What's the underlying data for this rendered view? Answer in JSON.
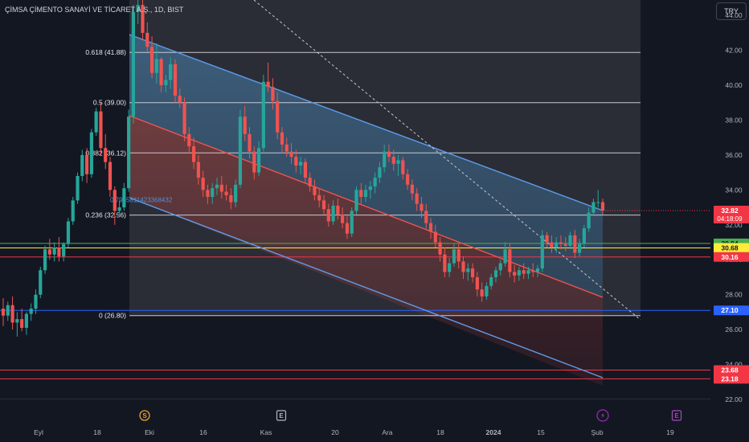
{
  "header": {
    "title": "ÇİMSA ÇİMENTO SANAYİ VE TİCARET A.Ş., 1D, BIST",
    "currency_button": "TRY"
  },
  "chart_data": {
    "type": "candlestick",
    "ylim": [
      22,
      44.5
    ],
    "y_ticks": [
      "22.00",
      "24.00",
      "26.00",
      "28.00",
      "30.00",
      "32.00",
      "34.00",
      "36.00",
      "38.00",
      "40.00",
      "42.00",
      "44.00"
    ],
    "x_ticks": [
      "Eyl",
      "18",
      "Eki",
      "16",
      "Kas",
      "20",
      "Ara",
      "18",
      "2024",
      "15",
      "Şub",
      "19"
    ],
    "fib_levels": [
      {
        "label": "0.618 (41.88)",
        "value": 41.88
      },
      {
        "label": "0.5 (39.00)",
        "value": 39.0
      },
      {
        "label": "0.382 (36.12)",
        "value": 36.12
      },
      {
        "label": "0.236 (32.56)",
        "value": 32.56
      },
      {
        "label": "0 (26.80)",
        "value": 26.8
      }
    ],
    "price_lines": [
      {
        "value": 30.94,
        "label": "30.94",
        "color": "#4caf50"
      },
      {
        "value": 30.68,
        "label": "30.68",
        "color": "#ffeb3b"
      },
      {
        "value": 30.16,
        "label": "30.16",
        "color": "#f23645"
      },
      {
        "value": 27.1,
        "label": "27.10",
        "color": "#2962ff"
      },
      {
        "value": 23.68,
        "label": "23.68",
        "color": "#f23645"
      },
      {
        "value": 23.18,
        "label": "23.18",
        "color": "#f23645"
      }
    ],
    "last_price": {
      "value": "32.82",
      "countdown": "04:18:09",
      "color": "#f23645"
    },
    "annotation": "0.7945811423368432",
    "event_markers": [
      {
        "symbol": "S",
        "type": "split",
        "position": "Eki"
      },
      {
        "symbol": "E",
        "type": "earnings",
        "position": "Kas"
      },
      {
        "symbol": "⚡",
        "type": "news",
        "position": "Şub"
      },
      {
        "symbol": "E",
        "type": "earnings",
        "position": "Şub"
      }
    ],
    "colors": {
      "up": "#26a69a",
      "down": "#ef5350",
      "channel": "#5d9cec",
      "background": "#131722"
    },
    "candles": [
      [
        27.2,
        27.8,
        26.2,
        26.8
      ],
      [
        26.8,
        27.6,
        26.5,
        27.4
      ],
      [
        27.4,
        27.9,
        26.0,
        26.4
      ],
      [
        26.4,
        27.0,
        25.6,
        26.6
      ],
      [
        26.6,
        27.2,
        25.9,
        26.1
      ],
      [
        26.1,
        27.0,
        25.7,
        26.9
      ],
      [
        26.9,
        27.5,
        26.5,
        27.2
      ],
      [
        27.2,
        28.3,
        26.9,
        28.0
      ],
      [
        28.0,
        29.6,
        27.8,
        29.4
      ],
      [
        29.4,
        30.8,
        29.2,
        30.6
      ],
      [
        30.6,
        31.2,
        30.0,
        30.3
      ],
      [
        30.3,
        31.0,
        29.9,
        30.7
      ],
      [
        30.7,
        31.3,
        29.9,
        30.2
      ],
      [
        30.2,
        31.0,
        29.9,
        30.9
      ],
      [
        30.9,
        32.4,
        30.7,
        32.2
      ],
      [
        32.2,
        33.6,
        32.0,
        33.4
      ],
      [
        33.4,
        35.0,
        33.2,
        34.8
      ],
      [
        34.8,
        36.3,
        34.5,
        36.0
      ],
      [
        36.0,
        36.4,
        34.4,
        34.9
      ],
      [
        34.9,
        37.5,
        34.7,
        37.3
      ],
      [
        37.3,
        38.7,
        37.1,
        38.5
      ],
      [
        38.5,
        39.0,
        36.0,
        36.4
      ],
      [
        36.4,
        37.2,
        35.2,
        35.6
      ],
      [
        35.6,
        35.9,
        33.6,
        34.0
      ],
      [
        34.0,
        34.2,
        32.0,
        32.8
      ],
      [
        32.8,
        33.4,
        32.5,
        33.0
      ],
      [
        33.0,
        34.4,
        32.8,
        34.1
      ],
      [
        34.1,
        38.6,
        33.9,
        38.2
      ],
      [
        38.2,
        44.6,
        37.8,
        44.2
      ],
      [
        44.2,
        45.0,
        43.5,
        44.6
      ],
      [
        44.6,
        45.0,
        42.6,
        43.0
      ],
      [
        43.0,
        43.6,
        41.9,
        42.2
      ],
      [
        42.2,
        42.8,
        40.4,
        40.7
      ],
      [
        40.7,
        42.4,
        40.1,
        41.5
      ],
      [
        41.5,
        41.6,
        39.6,
        40.0
      ],
      [
        40.0,
        40.6,
        39.6,
        40.3
      ],
      [
        40.3,
        41.6,
        39.8,
        41.2
      ],
      [
        41.2,
        41.5,
        39.0,
        39.4
      ],
      [
        39.4,
        39.8,
        38.7,
        39.0
      ],
      [
        39.0,
        39.3,
        36.8,
        37.2
      ],
      [
        37.2,
        37.6,
        36.1,
        36.5
      ],
      [
        36.5,
        37.0,
        35.2,
        35.6
      ],
      [
        35.6,
        36.0,
        34.3,
        34.7
      ],
      [
        34.7,
        35.1,
        33.6,
        34.0
      ],
      [
        34.0,
        34.3,
        33.2,
        33.6
      ],
      [
        33.6,
        34.4,
        33.2,
        34.1
      ],
      [
        34.1,
        34.7,
        33.7,
        34.3
      ],
      [
        34.3,
        34.8,
        33.5,
        33.9
      ],
      [
        33.9,
        34.3,
        33.4,
        33.7
      ],
      [
        33.7,
        34.1,
        32.9,
        33.3
      ],
      [
        33.3,
        34.6,
        33.0,
        34.3
      ],
      [
        34.3,
        38.6,
        34.1,
        38.2
      ],
      [
        38.2,
        38.8,
        36.8,
        37.2
      ],
      [
        37.2,
        37.6,
        35.8,
        36.2
      ],
      [
        36.2,
        36.5,
        34.6,
        35.0
      ],
      [
        35.0,
        36.8,
        34.8,
        36.4
      ],
      [
        36.4,
        40.6,
        36.2,
        40.2
      ],
      [
        40.2,
        41.3,
        39.6,
        39.9
      ],
      [
        39.9,
        40.4,
        38.6,
        39.1
      ],
      [
        39.1,
        39.6,
        36.9,
        37.3
      ],
      [
        37.3,
        37.6,
        36.1,
        36.6
      ],
      [
        36.6,
        37.0,
        35.9,
        36.2
      ],
      [
        36.2,
        36.7,
        35.5,
        35.9
      ],
      [
        35.9,
        36.3,
        35.0,
        35.4
      ],
      [
        35.4,
        35.9,
        34.9,
        35.6
      ],
      [
        35.6,
        35.8,
        34.4,
        34.7
      ],
      [
        34.7,
        35.0,
        33.9,
        34.2
      ],
      [
        34.2,
        34.6,
        33.4,
        33.7
      ],
      [
        33.7,
        34.1,
        33.0,
        33.4
      ],
      [
        33.4,
        33.7,
        32.6,
        32.9
      ],
      [
        32.9,
        33.2,
        31.9,
        32.2
      ],
      [
        32.2,
        33.4,
        32.0,
        33.1
      ],
      [
        33.1,
        33.5,
        32.3,
        32.6
      ],
      [
        32.6,
        33.0,
        31.8,
        32.1
      ],
      [
        32.1,
        32.5,
        31.2,
        31.5
      ],
      [
        31.5,
        33.0,
        31.3,
        32.8
      ],
      [
        32.8,
        34.2,
        32.6,
        34.0
      ],
      [
        34.0,
        34.4,
        33.2,
        33.6
      ],
      [
        33.6,
        34.3,
        33.3,
        34.0
      ],
      [
        34.0,
        34.5,
        33.5,
        34.2
      ],
      [
        34.2,
        35.0,
        33.8,
        34.7
      ],
      [
        34.7,
        35.6,
        34.4,
        35.3
      ],
      [
        35.3,
        36.6,
        35.0,
        36.2
      ],
      [
        36.2,
        36.6,
        35.6,
        35.9
      ],
      [
        35.9,
        36.3,
        35.1,
        35.5
      ],
      [
        35.5,
        36.0,
        34.8,
        35.7
      ],
      [
        35.7,
        35.9,
        34.6,
        34.9
      ],
      [
        34.9,
        35.2,
        34.0,
        34.3
      ],
      [
        34.3,
        34.6,
        33.4,
        33.8
      ],
      [
        33.8,
        34.1,
        32.8,
        33.2
      ],
      [
        33.2,
        33.6,
        32.4,
        32.8
      ],
      [
        32.8,
        33.2,
        31.8,
        32.1
      ],
      [
        32.1,
        32.4,
        31.2,
        31.6
      ],
      [
        31.6,
        32.0,
        30.7,
        31.0
      ],
      [
        31.0,
        31.3,
        29.9,
        30.3
      ],
      [
        30.3,
        30.7,
        29.0,
        29.3
      ],
      [
        29.3,
        30.1,
        29.0,
        29.8
      ],
      [
        29.8,
        30.9,
        29.6,
        30.6
      ],
      [
        30.6,
        30.9,
        29.5,
        29.9
      ],
      [
        29.9,
        30.2,
        28.9,
        29.3
      ],
      [
        29.3,
        29.8,
        28.8,
        29.5
      ],
      [
        29.5,
        29.8,
        28.7,
        29.0
      ],
      [
        29.0,
        29.3,
        27.9,
        28.3
      ],
      [
        28.3,
        28.7,
        27.6,
        27.9
      ],
      [
        27.9,
        28.7,
        27.7,
        28.5
      ],
      [
        28.5,
        29.2,
        28.3,
        29.0
      ],
      [
        29.0,
        29.6,
        28.7,
        29.4
      ],
      [
        29.4,
        30.0,
        29.1,
        29.8
      ],
      [
        29.8,
        31.0,
        29.6,
        30.6
      ],
      [
        30.6,
        30.9,
        29.0,
        29.3
      ],
      [
        29.3,
        29.7,
        28.7,
        29.1
      ],
      [
        29.1,
        29.6,
        28.8,
        29.4
      ],
      [
        29.4,
        29.8,
        28.9,
        29.2
      ],
      [
        29.2,
        29.6,
        28.9,
        29.4
      ],
      [
        29.4,
        29.8,
        29.0,
        29.3
      ],
      [
        29.3,
        29.7,
        29.0,
        29.5
      ],
      [
        29.5,
        31.7,
        29.3,
        31.4
      ],
      [
        31.4,
        31.6,
        30.7,
        31.0
      ],
      [
        31.0,
        31.4,
        30.4,
        30.7
      ],
      [
        30.7,
        31.3,
        30.4,
        31.0
      ],
      [
        31.0,
        31.4,
        30.6,
        30.9
      ],
      [
        30.9,
        31.3,
        30.5,
        30.8
      ],
      [
        30.8,
        31.6,
        30.6,
        31.4
      ],
      [
        31.4,
        31.7,
        30.1,
        30.4
      ],
      [
        30.4,
        31.2,
        30.2,
        30.9
      ],
      [
        30.9,
        32.0,
        30.7,
        31.8
      ],
      [
        31.8,
        33.0,
        31.6,
        32.7
      ],
      [
        32.7,
        33.5,
        32.5,
        33.3
      ],
      [
        33.3,
        34.0,
        33.0,
        33.3
      ],
      [
        33.3,
        33.5,
        32.6,
        32.82
      ]
    ]
  }
}
